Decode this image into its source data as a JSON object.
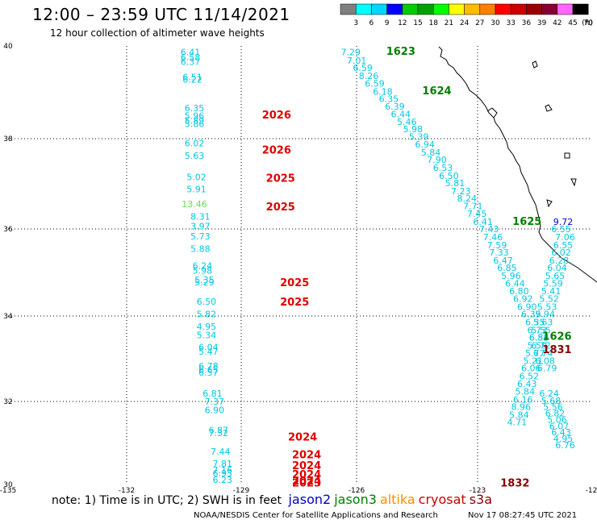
{
  "header": {
    "title": "12:00 – 23:59 UTC 11/14/2021",
    "subtitle": "12 hour collection of altimeter wave heights"
  },
  "legend": {
    "unit": "(ft)",
    "labels": [
      "3",
      "6",
      "9",
      "12",
      "15",
      "18",
      "21",
      "24",
      "27",
      "30",
      "33",
      "36",
      "39",
      "42",
      "45",
      "70"
    ],
    "colors": [
      "#808080",
      "#00ffff",
      "#00d8ff",
      "#0000ff",
      "#00cc00",
      "#00a000",
      "#00ff00",
      "#ffff00",
      "#ffbb00",
      "#ff8000",
      "#ff0000",
      "#cc0000",
      "#990000",
      "#880033",
      "#ff66ff",
      "#000000"
    ]
  },
  "axes": {
    "x_ticks": [
      "-135",
      "-132",
      "-129",
      "-126",
      "-123",
      "-12"
    ],
    "y_ticks": [
      "40",
      "38",
      "36",
      "34",
      "32",
      "30"
    ]
  },
  "map_view": {
    "lon_range": [
      -135,
      -120
    ],
    "lat_range": [
      30,
      40
    ]
  },
  "colors": {
    "cyan": "#00c8e0",
    "blue": "#0000c8",
    "green": "#008000",
    "lightgreen": "#66dd44",
    "red": "#e00000",
    "darkred": "#8b0000",
    "orange": "#ff8c00",
    "crimson": "#cc0000"
  },
  "track_labels": [
    {
      "text": "2026",
      "color": "red",
      "lon": -128.3,
      "lat": 38.35
    },
    {
      "text": "2026",
      "color": "red",
      "lon": -128.3,
      "lat": 37.55
    },
    {
      "text": "2025",
      "color": "red",
      "lon": -128.2,
      "lat": 36.9
    },
    {
      "text": "2025",
      "color": "red",
      "lon": -128.2,
      "lat": 36.25
    },
    {
      "text": "2025",
      "color": "red",
      "lon": -127.85,
      "lat": 34.52
    },
    {
      "text": "2025",
      "color": "red",
      "lon": -127.85,
      "lat": 34.08
    },
    {
      "text": "2024",
      "color": "red",
      "lon": -127.65,
      "lat": 31.0
    },
    {
      "text": "2024",
      "color": "red",
      "lon": -127.55,
      "lat": 30.6
    },
    {
      "text": "2024",
      "color": "red",
      "lon": -127.55,
      "lat": 30.35
    },
    {
      "text": "2024",
      "color": "red",
      "lon": -127.55,
      "lat": 30.15
    },
    {
      "text": "2024",
      "color": "red",
      "lon": -127.55,
      "lat": 30.0
    },
    {
      "text": "2023",
      "color": "red",
      "lon": -127.55,
      "lat": 29.95
    },
    {
      "text": "1623",
      "color": "green",
      "lon": -125.2,
      "lat": 39.8
    },
    {
      "text": "1624",
      "color": "green",
      "lon": -124.3,
      "lat": 38.9
    },
    {
      "text": "1625",
      "color": "green",
      "lon": -122.05,
      "lat": 35.92
    },
    {
      "text": "1626",
      "color": "green",
      "lon": -121.3,
      "lat": 33.3
    },
    {
      "text": "1831",
      "color": "darkred",
      "lon": -121.3,
      "lat": 33.0
    },
    {
      "text": "1832",
      "color": "darkred",
      "lon": -122.35,
      "lat": 29.95
    },
    {
      "text": "1-",
      "color": "green",
      "lon": -120.15,
      "lat": 30.5
    }
  ],
  "wave_heights": [
    {
      "v": "6.41",
      "c": "cyan",
      "lon": -130.45,
      "lat": 39.79
    },
    {
      "v": "6.58",
      "c": "cyan",
      "lon": -130.45,
      "lat": 39.67
    },
    {
      "v": "6.37",
      "c": "cyan",
      "lon": -130.45,
      "lat": 39.57
    },
    {
      "v": "6.51",
      "c": "cyan",
      "lon": -130.4,
      "lat": 39.22
    },
    {
      "v": "6.22",
      "c": "cyan",
      "lon": -130.4,
      "lat": 39.16
    },
    {
      "v": "6.35",
      "c": "cyan",
      "lon": -130.35,
      "lat": 38.51
    },
    {
      "v": "5.96",
      "c": "cyan",
      "lon": -130.35,
      "lat": 38.34
    },
    {
      "v": "5.89",
      "c": "cyan",
      "lon": -130.35,
      "lat": 38.23
    },
    {
      "v": "5.86",
      "c": "cyan",
      "lon": -130.35,
      "lat": 38.15
    },
    {
      "v": "6.02",
      "c": "cyan",
      "lon": -130.35,
      "lat": 37.71
    },
    {
      "v": "5.63",
      "c": "cyan",
      "lon": -130.35,
      "lat": 37.43
    },
    {
      "v": "5.02",
      "c": "cyan",
      "lon": -130.3,
      "lat": 36.94
    },
    {
      "v": "5.91",
      "c": "cyan",
      "lon": -130.3,
      "lat": 36.66
    },
    {
      "v": "13.46",
      "c": "lightgreen",
      "lon": -130.35,
      "lat": 36.32
    },
    {
      "v": "8.31",
      "c": "cyan",
      "lon": -130.2,
      "lat": 36.04
    },
    {
      "v": "3.97",
      "c": "cyan",
      "lon": -130.2,
      "lat": 35.82
    },
    {
      "v": "5.73",
      "c": "cyan",
      "lon": -130.2,
      "lat": 35.59
    },
    {
      "v": "5.88",
      "c": "cyan",
      "lon": -130.2,
      "lat": 35.3
    },
    {
      "v": "6.24",
      "c": "cyan",
      "lon": -130.15,
      "lat": 34.92
    },
    {
      "v": "5.98",
      "c": "cyan",
      "lon": -130.15,
      "lat": 34.81
    },
    {
      "v": "5.35",
      "c": "cyan",
      "lon": -130.1,
      "lat": 34.6
    },
    {
      "v": "5.29",
      "c": "cyan",
      "lon": -130.1,
      "lat": 34.54
    },
    {
      "v": "6.50",
      "c": "cyan",
      "lon": -130.05,
      "lat": 34.1
    },
    {
      "v": "5.82",
      "c": "cyan",
      "lon": -130.05,
      "lat": 33.81
    },
    {
      "v": "4.95",
      "c": "cyan",
      "lon": -130.05,
      "lat": 33.53
    },
    {
      "v": "5.34",
      "c": "cyan",
      "lon": -130.05,
      "lat": 33.34
    },
    {
      "v": "6.04",
      "c": "cyan",
      "lon": -130.0,
      "lat": 33.06
    },
    {
      "v": "5.47",
      "c": "cyan",
      "lon": -130.0,
      "lat": 32.96
    },
    {
      "v": "6.78",
      "c": "cyan",
      "lon": -130.0,
      "lat": 32.63
    },
    {
      "v": "6.65",
      "c": "cyan",
      "lon": -130.0,
      "lat": 32.55
    },
    {
      "v": "6.57",
      "c": "cyan",
      "lon": -130.0,
      "lat": 32.48
    },
    {
      "v": "6.81",
      "c": "cyan",
      "lon": -129.9,
      "lat": 32.0
    },
    {
      "v": "7.37",
      "c": "cyan",
      "lon": -129.85,
      "lat": 31.82
    },
    {
      "v": "6.90",
      "c": "cyan",
      "lon": -129.85,
      "lat": 31.63
    },
    {
      "v": "6.87",
      "c": "cyan",
      "lon": -129.75,
      "lat": 31.17
    },
    {
      "v": "7.32",
      "c": "cyan",
      "lon": -129.75,
      "lat": 31.1
    },
    {
      "v": "7.44",
      "c": "cyan",
      "lon": -129.7,
      "lat": 30.68
    },
    {
      "v": "7.81",
      "c": "cyan",
      "lon": -129.65,
      "lat": 30.4
    },
    {
      "v": "7.16",
      "c": "cyan",
      "lon": -129.65,
      "lat": 30.26
    },
    {
      "v": "6.93",
      "c": "cyan",
      "lon": -129.65,
      "lat": 30.18
    },
    {
      "v": "6.23",
      "c": "cyan",
      "lon": -129.65,
      "lat": 30.04
    },
    {
      "v": "7.29",
      "c": "cyan",
      "lon": -126.45,
      "lat": 39.79
    },
    {
      "v": "7.01",
      "c": "cyan",
      "lon": -126.3,
      "lat": 39.6
    },
    {
      "v": "6.59",
      "c": "cyan",
      "lon": -126.15,
      "lat": 39.43
    },
    {
      "v": "8.26",
      "c": "cyan",
      "lon": -126.0,
      "lat": 39.25
    },
    {
      "v": "6.59",
      "c": "cyan",
      "lon": -125.85,
      "lat": 39.07
    },
    {
      "v": "6.18",
      "c": "cyan",
      "lon": -125.65,
      "lat": 38.89
    },
    {
      "v": "6.35",
      "c": "cyan",
      "lon": -125.5,
      "lat": 38.72
    },
    {
      "v": "6.39",
      "c": "cyan",
      "lon": -125.35,
      "lat": 38.55
    },
    {
      "v": "6.44",
      "c": "cyan",
      "lon": -125.2,
      "lat": 38.37
    },
    {
      "v": "5.46",
      "c": "cyan",
      "lon": -125.05,
      "lat": 38.2
    },
    {
      "v": "5.98",
      "c": "cyan",
      "lon": -124.9,
      "lat": 38.03
    },
    {
      "v": "5.39",
      "c": "cyan",
      "lon": -124.75,
      "lat": 37.86
    },
    {
      "v": "6.94",
      "c": "cyan",
      "lon": -124.6,
      "lat": 37.68
    },
    {
      "v": "5.84",
      "c": "cyan",
      "lon": -124.45,
      "lat": 37.5
    },
    {
      "v": "7.90",
      "c": "cyan",
      "lon": -124.3,
      "lat": 37.33
    },
    {
      "v": "6.53",
      "c": "cyan",
      "lon": -124.15,
      "lat": 37.15
    },
    {
      "v": "6.50",
      "c": "cyan",
      "lon": -124.0,
      "lat": 36.97
    },
    {
      "v": "5.81",
      "c": "cyan",
      "lon": -123.85,
      "lat": 36.8
    },
    {
      "v": "7.23",
      "c": "cyan",
      "lon": -123.7,
      "lat": 36.62
    },
    {
      "v": "8.24",
      "c": "cyan",
      "lon": -123.55,
      "lat": 36.45
    },
    {
      "v": "7.71",
      "c": "cyan",
      "lon": -123.4,
      "lat": 36.28
    },
    {
      "v": "7.45",
      "c": "cyan",
      "lon": -123.3,
      "lat": 36.1
    },
    {
      "v": "6.41",
      "c": "cyan",
      "lon": -123.15,
      "lat": 35.92
    },
    {
      "v": "7.43",
      "c": "cyan",
      "lon": -123.0,
      "lat": 35.75
    },
    {
      "v": "7.46",
      "c": "cyan",
      "lon": -122.9,
      "lat": 35.57
    },
    {
      "v": "7.59",
      "c": "cyan",
      "lon": -122.8,
      "lat": 35.39
    },
    {
      "v": "7.33",
      "c": "cyan",
      "lon": -122.75,
      "lat": 35.22
    },
    {
      "v": "6.47",
      "c": "cyan",
      "lon": -122.65,
      "lat": 35.04
    },
    {
      "v": "6.85",
      "c": "cyan",
      "lon": -122.55,
      "lat": 34.87
    },
    {
      "v": "5.96",
      "c": "cyan",
      "lon": -122.45,
      "lat": 34.69
    },
    {
      "v": "6.44",
      "c": "cyan",
      "lon": -122.35,
      "lat": 34.51
    },
    {
      "v": "6.80",
      "c": "cyan",
      "lon": -122.25,
      "lat": 34.34
    },
    {
      "v": "6.92",
      "c": "cyan",
      "lon": -122.15,
      "lat": 34.16
    },
    {
      "v": "6.90",
      "c": "cyan",
      "lon": -122.05,
      "lat": 33.98
    },
    {
      "v": "6.39",
      "c": "cyan",
      "lon": -121.95,
      "lat": 33.81
    },
    {
      "v": "6.35",
      "c": "cyan",
      "lon": -121.85,
      "lat": 33.63
    },
    {
      "v": "6.73",
      "c": "cyan",
      "lon": -121.8,
      "lat": 33.45
    },
    {
      "v": "6.86",
      "c": "cyan",
      "lon": -121.75,
      "lat": 33.28
    },
    {
      "v": "6.72",
      "c": "cyan",
      "lon": -121.7,
      "lat": 33.1
    },
    {
      "v": "6.74",
      "c": "cyan",
      "lon": -121.65,
      "lat": 32.92
    },
    {
      "v": "6.08",
      "c": "cyan",
      "lon": -121.6,
      "lat": 32.75
    },
    {
      "v": "6.79",
      "c": "cyan",
      "lon": -121.55,
      "lat": 32.58
    },
    {
      "v": "6.24",
      "c": "cyan",
      "lon": -121.5,
      "lat": 32.0
    },
    {
      "v": "5.68",
      "c": "cyan",
      "lon": -121.45,
      "lat": 31.84
    },
    {
      "v": "5.56",
      "c": "cyan",
      "lon": -121.4,
      "lat": 31.7
    },
    {
      "v": "6.82",
      "c": "cyan",
      "lon": -121.35,
      "lat": 31.55
    },
    {
      "v": "5.06",
      "c": "cyan",
      "lon": -121.3,
      "lat": 31.41
    },
    {
      "v": "6.07",
      "c": "cyan",
      "lon": -121.25,
      "lat": 31.26
    },
    {
      "v": "6.43",
      "c": "cyan",
      "lon": -121.2,
      "lat": 31.12
    },
    {
      "v": "4.95",
      "c": "cyan",
      "lon": -121.15,
      "lat": 30.97
    },
    {
      "v": "6.76",
      "c": "cyan",
      "lon": -121.1,
      "lat": 30.83
    },
    {
      "v": "9.72",
      "c": "blue",
      "lon": -121.15,
      "lat": 35.92
    },
    {
      "v": "6.55",
      "c": "cyan",
      "lon": -121.2,
      "lat": 35.75
    },
    {
      "v": "7.06",
      "c": "cyan",
      "lon": -121.1,
      "lat": 35.57
    },
    {
      "v": "6.55",
      "c": "cyan",
      "lon": -121.15,
      "lat": 35.39
    },
    {
      "v": "6.02",
      "c": "cyan",
      "lon": -121.2,
      "lat": 35.22
    },
    {
      "v": "6.28",
      "c": "cyan",
      "lon": -121.25,
      "lat": 35.04
    },
    {
      "v": "6.04",
      "c": "cyan",
      "lon": -121.3,
      "lat": 34.87
    },
    {
      "v": "5.65",
      "c": "cyan",
      "lon": -121.35,
      "lat": 34.69
    },
    {
      "v": "5.59",
      "c": "cyan",
      "lon": -121.4,
      "lat": 34.51
    },
    {
      "v": "5.41",
      "c": "cyan",
      "lon": -121.45,
      "lat": 34.34
    },
    {
      "v": "5.52",
      "c": "cyan",
      "lon": -121.5,
      "lat": 34.16
    },
    {
      "v": "5.53",
      "c": "cyan",
      "lon": -121.55,
      "lat": 33.98
    },
    {
      "v": "5.94",
      "c": "cyan",
      "lon": -121.6,
      "lat": 33.81
    },
    {
      "v": "5.63",
      "c": "cyan",
      "lon": -121.65,
      "lat": 33.63
    },
    {
      "v": "5.55",
      "c": "cyan",
      "lon": -121.7,
      "lat": 33.45
    },
    {
      "v": "6.53",
      "c": "cyan",
      "lon": -121.75,
      "lat": 33.28
    },
    {
      "v": "5.59",
      "c": "cyan",
      "lon": -121.8,
      "lat": 33.1
    },
    {
      "v": "5.77",
      "c": "cyan",
      "lon": -121.85,
      "lat": 32.92
    },
    {
      "v": "5.21",
      "c": "cyan",
      "lon": -121.9,
      "lat": 32.75
    },
    {
      "v": "6.06",
      "c": "cyan",
      "lon": -121.95,
      "lat": 32.58
    },
    {
      "v": "6.52",
      "c": "cyan",
      "lon": -122.0,
      "lat": 32.4
    },
    {
      "v": "6.43",
      "c": "cyan",
      "lon": -122.05,
      "lat": 32.22
    },
    {
      "v": "5.84",
      "c": "cyan",
      "lon": -122.1,
      "lat": 32.05
    },
    {
      "v": "6.16",
      "c": "cyan",
      "lon": -122.15,
      "lat": 31.87
    },
    {
      "v": "8.96",
      "c": "cyan",
      "lon": -122.2,
      "lat": 31.7
    },
    {
      "v": "5.84",
      "c": "cyan",
      "lon": -122.25,
      "lat": 31.52
    },
    {
      "v": "4.71",
      "c": "cyan",
      "lon": -122.3,
      "lat": 31.35
    }
  ],
  "footer": {
    "note": "note:  1) Time is in UTC;  2) SWH is in feet",
    "satellites": [
      {
        "name": "jason2",
        "color": "blue"
      },
      {
        "name": "jason3",
        "color": "green"
      },
      {
        "name": "altika",
        "color": "orange"
      },
      {
        "name": "cryosat",
        "color": "crimson"
      },
      {
        "name": "s3a",
        "color": "darkred"
      }
    ],
    "credit": "NOAA/NESDIS Center for Satellite Applications and Research",
    "timestamp": "Nov 17 08:27:45 UTC 2021"
  }
}
